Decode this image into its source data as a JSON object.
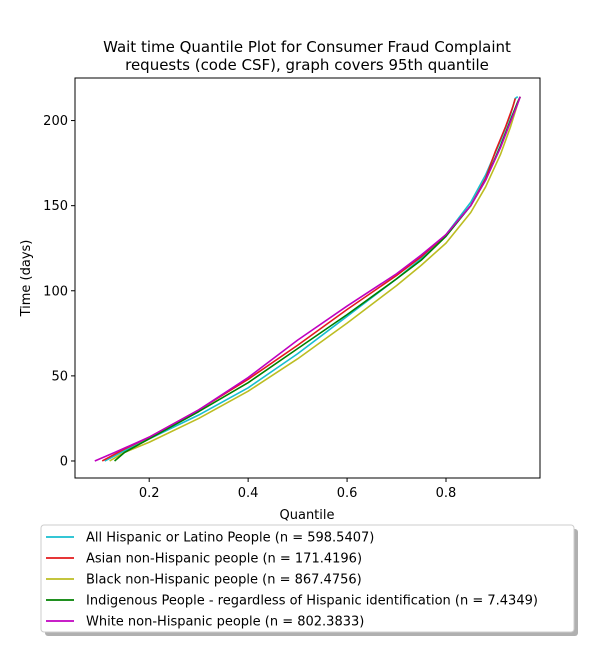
{
  "chart_data": {
    "type": "line",
    "title_lines": [
      "Wait time Quantile Plot for Consumer Fraud Complaint",
      "requests (code CSF), graph covers 95th quantile"
    ],
    "xlabel": "Quantile",
    "ylabel": "Time (days)",
    "xlim": [
      0.05,
      0.99
    ],
    "ylim": [
      -10,
      225
    ],
    "xticks": [
      0.2,
      0.4,
      0.6,
      0.8
    ],
    "xtick_labels": [
      "0.2",
      "0.4",
      "0.6",
      "0.8"
    ],
    "yticks": [
      0,
      50,
      100,
      150,
      200
    ],
    "ytick_labels": [
      "0",
      "50",
      "100",
      "150",
      "200"
    ],
    "grid": false,
    "legend_position": "below",
    "series": [
      {
        "name": "All Hispanic or Latino People (n = 598.5407)",
        "color": "#17becf",
        "x": [
          0.11,
          0.15,
          0.2,
          0.3,
          0.4,
          0.5,
          0.6,
          0.7,
          0.75,
          0.8,
          0.85,
          0.88,
          0.91,
          0.93,
          0.94,
          0.945
        ],
        "y": [
          0,
          6,
          13,
          27,
          43,
          63,
          85,
          107,
          119,
          133,
          152,
          168,
          188,
          203,
          213,
          214
        ]
      },
      {
        "name": "Asian non-Hispanic people (n = 171.4196)",
        "color": "#e31a1c",
        "x": [
          0.105,
          0.15,
          0.2,
          0.3,
          0.4,
          0.5,
          0.6,
          0.7,
          0.75,
          0.8,
          0.85,
          0.88,
          0.9,
          0.92,
          0.935,
          0.94
        ],
        "y": [
          0,
          7,
          14,
          30,
          48,
          68,
          89,
          109,
          120,
          133,
          150,
          166,
          182,
          196,
          208,
          213
        ]
      },
      {
        "name": "Black non-Hispanic people (n = 867.4756)",
        "color": "#bcbd22",
        "x": [
          0.12,
          0.15,
          0.2,
          0.3,
          0.4,
          0.5,
          0.6,
          0.7,
          0.75,
          0.8,
          0.85,
          0.88,
          0.91,
          0.93,
          0.945,
          0.95
        ],
        "y": [
          0,
          5,
          11,
          25,
          41,
          60,
          81,
          103,
          115,
          128,
          146,
          161,
          180,
          196,
          210,
          214
        ]
      },
      {
        "name": "Indigenous People - regardless of Hispanic identification (n = 7.4349)",
        "color": "#008000",
        "x": [
          0.13,
          0.15,
          0.2,
          0.3,
          0.4,
          0.5,
          0.6,
          0.7,
          0.75,
          0.8,
          0.85,
          0.88,
          0.91,
          0.93,
          0.945,
          0.95
        ],
        "y": [
          0,
          5,
          13,
          29,
          46,
          66,
          86,
          107,
          118,
          132,
          150,
          165,
          185,
          200,
          211,
          214
        ]
      },
      {
        "name": "White non-Hispanic people (n = 802.3833)",
        "color": "#c000c0",
        "x": [
          0.09,
          0.13,
          0.2,
          0.3,
          0.4,
          0.5,
          0.6,
          0.7,
          0.75,
          0.8,
          0.85,
          0.88,
          0.91,
          0.93,
          0.945,
          0.95
        ],
        "y": [
          0,
          5,
          14,
          30,
          49,
          71,
          91,
          110,
          121,
          133,
          150,
          165,
          184,
          199,
          210,
          214
        ]
      }
    ]
  }
}
